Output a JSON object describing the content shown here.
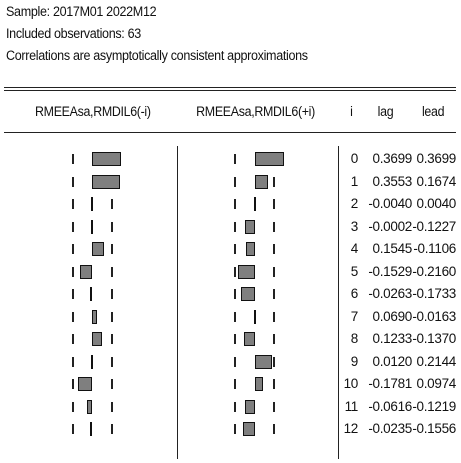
{
  "header": {
    "sample_line": "Sample: 2017M01 2022M12",
    "observations_line": "Included observations: 63",
    "note_line": "Correlations are asymptotically consistent approximations"
  },
  "table": {
    "columns": {
      "left_graph": "RMEEAsa,RMDIL6(-i)",
      "right_graph": "RMEEAsa,RMDIL6(+i)",
      "index": "i",
      "lag": "lag",
      "lead": "lead"
    },
    "rows": [
      {
        "i": "0",
        "lag": "0.3699",
        "lead": "0.3699",
        "lag_value": 0.3699,
        "lead_value": 0.3699
      },
      {
        "i": "1",
        "lag": "0.3553",
        "lead": "0.1674",
        "lag_value": 0.3553,
        "lead_value": 0.1674
      },
      {
        "i": "2",
        "lag": "-0.0040",
        "lead": "0.0040",
        "lag_value": -0.004,
        "lead_value": 0.004
      },
      {
        "i": "3",
        "lag": "-0.0002",
        "lead": "-0.1227",
        "lag_value": -0.0002,
        "lead_value": -0.1227
      },
      {
        "i": "4",
        "lag": "0.1545",
        "lead": "-0.1106",
        "lag_value": 0.1545,
        "lead_value": -0.1106
      },
      {
        "i": "5",
        "lag": "-0.1529",
        "lead": "-0.2160",
        "lag_value": -0.1529,
        "lead_value": -0.216
      },
      {
        "i": "6",
        "lag": "-0.0263",
        "lead": "-0.1733",
        "lag_value": -0.0263,
        "lead_value": -0.1733
      },
      {
        "i": "7",
        "lag": "0.0690",
        "lead": "-0.0163",
        "lag_value": 0.069,
        "lead_value": -0.0163
      },
      {
        "i": "8",
        "lag": "0.1233",
        "lead": "-0.1370",
        "lag_value": 0.1233,
        "lead_value": -0.137
      },
      {
        "i": "9",
        "lag": "0.0120",
        "lead": "0.2144",
        "lag_value": 0.012,
        "lead_value": 0.2144
      },
      {
        "i": "10",
        "lag": "-0.1781",
        "lead": "0.0974",
        "lag_value": -0.1781,
        "lead_value": 0.0974
      },
      {
        "i": "11",
        "lag": "-0.0616",
        "lead": "-0.1219",
        "lag_value": -0.0616,
        "lead_value": -0.1219
      },
      {
        "i": "12",
        "lag": "-0.0235",
        "lead": "-0.1556",
        "lag_value": -0.0235,
        "lead_value": -0.1556
      }
    ]
  },
  "colors": {
    "bar_fill": "#7f7f7f",
    "bar_border": "#111111",
    "text": "#111111",
    "background": "#ffffff"
  }
}
